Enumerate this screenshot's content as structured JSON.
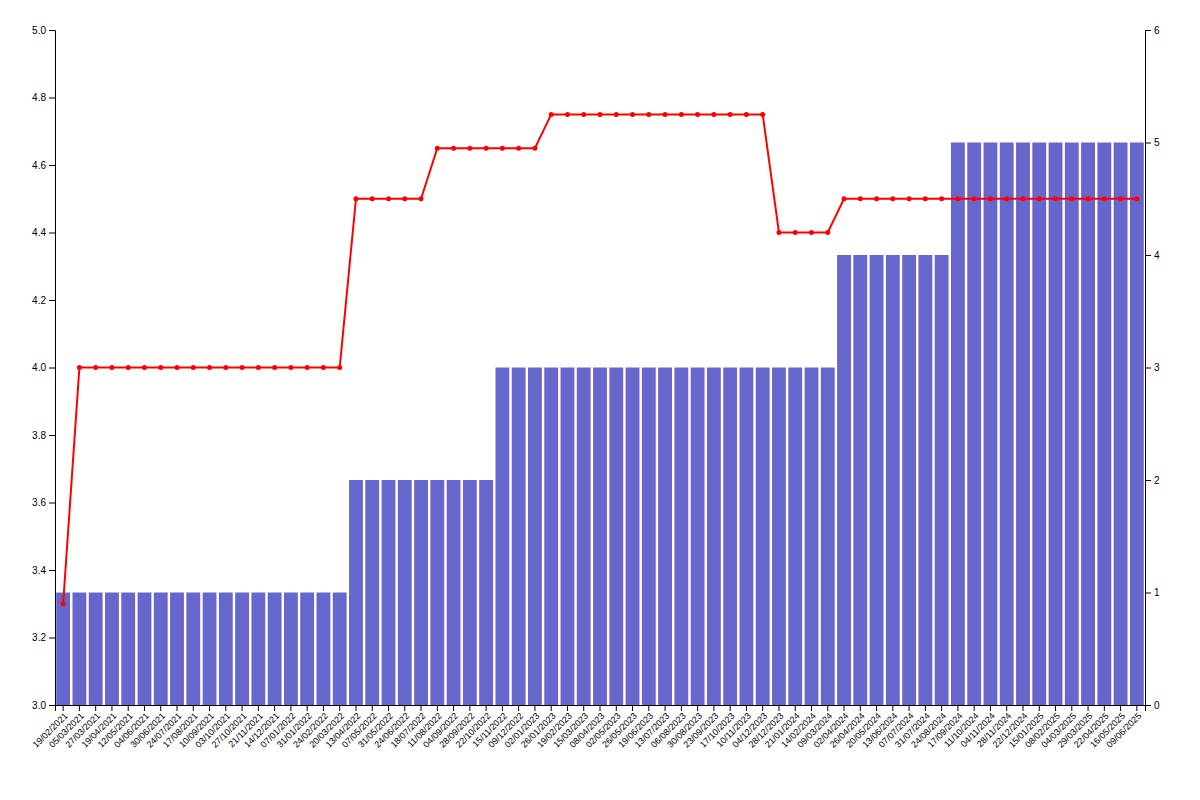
{
  "chart_data": {
    "type": "bar",
    "categories": [
      "19/02/2021",
      "05/03/2021",
      "27/03/2021",
      "19/04/2021",
      "12/05/2021",
      "04/06/2021",
      "30/06/2021",
      "24/07/2021",
      "17/08/2021",
      "10/09/2021",
      "03/10/2021",
      "27/10/2021",
      "21/11/2021",
      "14/12/2021",
      "07/01/2022",
      "31/01/2022",
      "24/02/2022",
      "20/03/2022",
      "13/04/2022",
      "07/05/2022",
      "31/05/2022",
      "24/06/2022",
      "18/07/2022",
      "11/08/2022",
      "04/09/2022",
      "28/09/2022",
      "22/10/2022",
      "15/11/2022",
      "09/12/2022",
      "02/01/2023",
      "26/01/2023",
      "19/02/2023",
      "15/03/2023",
      "08/04/2023",
      "02/05/2023",
      "26/05/2023",
      "19/06/2023",
      "13/07/2023",
      "06/08/2023",
      "30/08/2023",
      "23/09/2023",
      "17/10/2023",
      "10/11/2023",
      "04/12/2023",
      "28/12/2023",
      "21/01/2024",
      "14/02/2024",
      "09/03/2024",
      "02/04/2024",
      "26/04/2024",
      "20/05/2024",
      "13/06/2024",
      "07/07/2024",
      "31/07/2024",
      "24/08/2024",
      "17/09/2024",
      "11/10/2024",
      "04/11/2024",
      "28/11/2024",
      "22/12/2024",
      "15/01/2025",
      "08/02/2025",
      "04/03/2025",
      "29/03/2025",
      "22/04/2025",
      "16/05/2025",
      "09/06/2025"
    ],
    "series": [
      {
        "type": "bar",
        "color": "#6666cc",
        "axis": "y2",
        "values": [
          1,
          1,
          1,
          1,
          1,
          1,
          1,
          1,
          1,
          1,
          1,
          1,
          1,
          1,
          1,
          1,
          1,
          1,
          2,
          2,
          2,
          2,
          2,
          2,
          2,
          2,
          2,
          3,
          3,
          3,
          3,
          3,
          3,
          3,
          3,
          3,
          3,
          3,
          3,
          3,
          3,
          3,
          3,
          3,
          3,
          3,
          3,
          3,
          4,
          4,
          4,
          4,
          4,
          4,
          4,
          5,
          5,
          5,
          5,
          5,
          5,
          5,
          5,
          5,
          5,
          5,
          5
        ]
      },
      {
        "type": "line",
        "color": "#ff0000",
        "marker": "circle",
        "values": [
          3.3,
          4.0,
          4.0,
          4.0,
          4.0,
          4.0,
          4.0,
          4.0,
          4.0,
          4.0,
          4.0,
          4.0,
          4.0,
          4.0,
          4.0,
          4.0,
          4.0,
          4.0,
          4.5,
          4.5,
          4.5,
          4.5,
          4.5,
          4.65,
          4.65,
          4.65,
          4.65,
          4.65,
          4.65,
          4.65,
          4.75,
          4.75,
          4.75,
          4.75,
          4.75,
          4.75,
          4.75,
          4.75,
          4.75,
          4.75,
          4.75,
          4.75,
          4.75,
          4.75,
          4.4,
          4.4,
          4.4,
          4.4,
          4.5,
          4.5,
          4.5,
          4.5,
          4.5,
          4.5,
          4.5,
          4.5,
          4.5,
          4.5,
          4.5,
          4.5,
          4.5,
          4.5,
          4.5,
          4.5,
          4.5,
          4.5,
          4.5
        ]
      }
    ],
    "ylim": [
      3.0,
      5.0
    ],
    "yticks": [
      {
        "value": 3.0,
        "label": "3.0"
      },
      3.2,
      3.4,
      3.6,
      3.8,
      {
        "value": 4.0,
        "label": "4.0"
      },
      4.2,
      4.4,
      4.6,
      4.8,
      {
        "value": 5.0,
        "label": "5.0"
      }
    ],
    "y2lim": [
      0,
      6
    ],
    "y2ticks": [
      0,
      1,
      2,
      3,
      4,
      5,
      6
    ],
    "grid": false
  }
}
